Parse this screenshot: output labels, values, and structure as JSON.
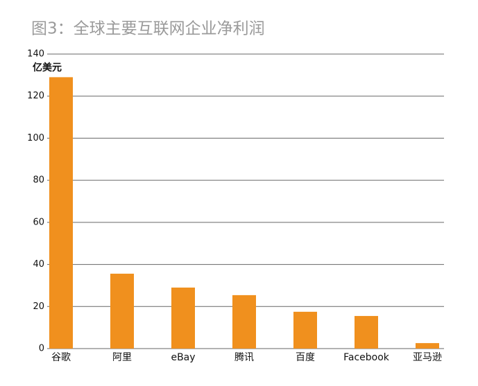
{
  "chart_data": {
    "type": "bar",
    "title": "图3：全球主要互联网企业净利润",
    "y_unit": "亿美元",
    "categories": [
      "谷歌",
      "阿里",
      "eBay",
      "腾讯",
      "百度",
      "Facebook",
      "亚马逊"
    ],
    "values": [
      129,
      35.6,
      29,
      25.4,
      17.5,
      15.5,
      2.6
    ],
    "color": "#f0901e",
    "ylim": [
      0,
      140
    ],
    "yticks": [
      0,
      20,
      40,
      60,
      80,
      100,
      120,
      140
    ],
    "grid": true
  }
}
